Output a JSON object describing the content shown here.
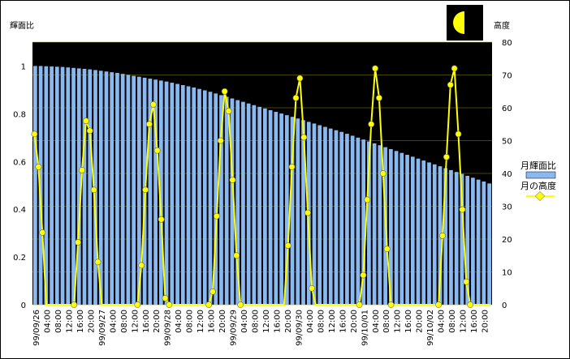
{
  "chart_data": {
    "type": "bar+line",
    "y_left_label": "輝面比",
    "y_right_label": "高度",
    "y_left_lim": [
      0,
      1.1
    ],
    "y_left_ticks": [
      "0",
      "0.2",
      "0.4",
      "0.6",
      "0.8",
      "1"
    ],
    "y_right_lim": [
      0,
      80
    ],
    "y_right_ticks": [
      "0",
      "10",
      "20",
      "30",
      "40",
      "50",
      "60",
      "70",
      "80"
    ],
    "x_tick_labels": [
      "99/09/26",
      "04:00",
      "08:00",
      "12:00",
      "16:00",
      "20:00",
      "99/09/27",
      "04:00",
      "08:00",
      "12:00",
      "16:00",
      "20:00",
      "99/09/28",
      "04:00",
      "08:00",
      "12:00",
      "16:00",
      "20:00",
      "99/09/29",
      "04:00",
      "08:00",
      "12:00",
      "16:00",
      "20:00",
      "99/09/30",
      "04:00",
      "08:00",
      "12:00",
      "16:00",
      "20:00",
      "99/10/01",
      "04:00",
      "08:00",
      "12:00",
      "16:00",
      "20:00",
      "99/10/02",
      "04:00",
      "08:00",
      "12:00",
      "16:00",
      "20:00"
    ],
    "x_step_hours": 2,
    "series": [
      {
        "name": "月輝面比",
        "kind": "bar",
        "color": "#8ab8f0",
        "values": [
          1.0,
          1.0,
          0.999,
          0.998,
          0.997,
          0.996,
          0.994,
          0.992,
          0.99,
          0.988,
          0.986,
          0.983,
          0.98,
          0.977,
          0.974,
          0.971,
          0.967,
          0.963,
          0.959,
          0.955,
          0.951,
          0.947,
          0.943,
          0.939,
          0.935,
          0.93,
          0.925,
          0.92,
          0.915,
          0.91,
          0.904,
          0.898,
          0.892,
          0.885,
          0.878,
          0.871,
          0.864,
          0.857,
          0.85,
          0.843,
          0.836,
          0.829,
          0.822,
          0.815,
          0.808,
          0.801,
          0.794,
          0.787,
          0.78,
          0.773,
          0.766,
          0.759,
          0.752,
          0.745,
          0.738,
          0.731,
          0.724,
          0.716,
          0.708,
          0.7,
          0.692,
          0.684,
          0.676,
          0.668,
          0.66,
          0.652,
          0.644,
          0.636,
          0.628,
          0.62,
          0.612,
          0.604,
          0.596,
          0.588,
          0.58,
          0.572,
          0.564,
          0.556,
          0.548,
          0.54,
          0.532,
          0.524,
          0.516,
          0.508
        ]
      },
      {
        "name": "月の高度",
        "kind": "line",
        "color": "#ffff00",
        "values": [
          52,
          42,
          22,
          0,
          0,
          0,
          0,
          0,
          0,
          0,
          0,
          19,
          41,
          56,
          53,
          35,
          13,
          0,
          0,
          0,
          0,
          0,
          0,
          0,
          0,
          0,
          0,
          12,
          35,
          55,
          61,
          47,
          26,
          2,
          0,
          0,
          0,
          0,
          0,
          0,
          0,
          0,
          0,
          0,
          0,
          4,
          27,
          50,
          65,
          59,
          38,
          15,
          0,
          0,
          0,
          0,
          0,
          0,
          0,
          0,
          0,
          0,
          0,
          0,
          18,
          42,
          63,
          69,
          51,
          28,
          5,
          0,
          0,
          0,
          0,
          0,
          0,
          0,
          0,
          0,
          0,
          0,
          0,
          9,
          32,
          55,
          72,
          63,
          40,
          17,
          0,
          0,
          0,
          0,
          0,
          0,
          0,
          0,
          0,
          0,
          0,
          0,
          0,
          21,
          45,
          67,
          72,
          52,
          29,
          7,
          0,
          0,
          0,
          0,
          0,
          0
        ]
      }
    ],
    "legend_position": "right"
  },
  "moon_icon": "half-moon-icon",
  "colors": {
    "plot_bg": "#000000",
    "bar": "#8ab8f0",
    "line": "#ffff00",
    "grid": "#8b8b00",
    "moon": "#ffff00"
  }
}
